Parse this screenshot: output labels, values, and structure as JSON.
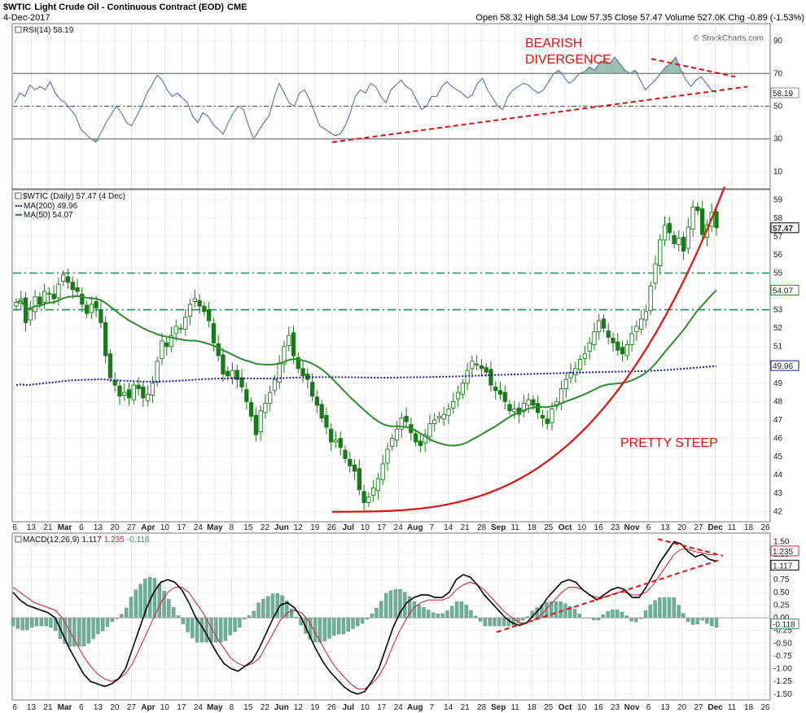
{
  "header": {
    "symbol": "$WTIC",
    "name": "Light Crude Oil - Continuous Contract (EOD)",
    "exchange": "CME",
    "date": "4-Dec-2017",
    "ohlc_text": "Open 58.32  High 58.34  Low 57.35  Close 57.47  Volume 527.0K  Chg -0.89 (-1.53%)",
    "watermark": "© StockCharts.com"
  },
  "colors": {
    "price_up": "#1a7a1a",
    "ma50": "#2e8b2e",
    "ma200": "#1a1a8c",
    "rsi": "#6a78a8",
    "rsi_fill": "#7fae98",
    "macd": "#000000",
    "signal": "#c03040",
    "hist": "#6fae98",
    "annotation": "#e01010",
    "sr": "#1a8c5a"
  },
  "x_axis": {
    "labels": [
      "6",
      "13",
      "21",
      "Mar",
      "6",
      "13",
      "20",
      "27",
      "Apr",
      "10",
      "17",
      "24",
      "May",
      "8",
      "15",
      "22",
      "Jun",
      "12",
      "19",
      "26",
      "Jul",
      "10",
      "17",
      "24",
      "Aug",
      "7",
      "14",
      "21",
      "28",
      "Sep",
      "11",
      "18",
      "25",
      "Oct",
      "10",
      "16",
      "23",
      "Nov",
      "6",
      "13",
      "20",
      "27",
      "Dec",
      "11",
      "18",
      "26"
    ],
    "bold": [
      "Mar",
      "Apr",
      "May",
      "Jun",
      "Jul",
      "Aug",
      "Sep",
      "Oct",
      "Nov",
      "Dec"
    ]
  },
  "chart_data": [
    {
      "type": "line",
      "panel": "rsi",
      "legend": "RSI(14) 58.19",
      "ylim": [
        0,
        100
      ],
      "yticks": [
        "90",
        "70",
        "50",
        "30",
        "10"
      ],
      "current_label": "58.19",
      "levels": [
        "70",
        "50",
        "30"
      ],
      "values": [
        52,
        58,
        56,
        63,
        60,
        62,
        60,
        65,
        58,
        54,
        52,
        48,
        44,
        36,
        33,
        30,
        28,
        34,
        40,
        45,
        50,
        46,
        40,
        38,
        44,
        50,
        58,
        63,
        69,
        66,
        60,
        56,
        58,
        55,
        52,
        44,
        40,
        46,
        44,
        39,
        36,
        33,
        40,
        46,
        50,
        48,
        38,
        30,
        35,
        40,
        44,
        55,
        64,
        58,
        52,
        50,
        58,
        60,
        54,
        46,
        38,
        36,
        34,
        32,
        33,
        38,
        46,
        56,
        60,
        58,
        64,
        62,
        56,
        52,
        60,
        63,
        66,
        62,
        60,
        54,
        48,
        50,
        56,
        56,
        62,
        65,
        62,
        60,
        58,
        55,
        57,
        64,
        67,
        60,
        55,
        50,
        48,
        56,
        60,
        62,
        64,
        63,
        60,
        58,
        60,
        65,
        70,
        72,
        68,
        64,
        66,
        70,
        71,
        74,
        72,
        76,
        78,
        76,
        80,
        76,
        72,
        70,
        72,
        66,
        60,
        63,
        66,
        70,
        74,
        76,
        80,
        72,
        66,
        62,
        66,
        68,
        64,
        60,
        58.19
      ],
      "annotation": {
        "text_lines": [
          "BEARISH",
          "DIVERGENCE"
        ]
      }
    },
    {
      "type": "candlestick",
      "panel": "price",
      "legend": [
        "$WTIC (Daily) 57.47 (4 Dec)",
        "MA(200) 49.96",
        "MA(50) 54.07"
      ],
      "ylim": [
        41.5,
        59.5
      ],
      "yticks": [
        "59",
        "58",
        "57",
        "56",
        "55",
        "54",
        "53",
        "52",
        "51",
        "50",
        "49",
        "48",
        "47",
        "46",
        "45",
        "44",
        "43",
        "42"
      ],
      "price_labels": {
        "last": "57.47",
        "ma50": "54.07",
        "ma200": "49.96"
      },
      "support_resistance": [
        55,
        53
      ],
      "closes": [
        53.4,
        53.6,
        52.3,
        53.0,
        53.7,
        53.3,
        54.0,
        53.9,
        53.6,
        54.4,
        54.9,
        54.5,
        54.1,
        54.0,
        53.3,
        52.8,
        53.3,
        53.1,
        52.3,
        50.5,
        49.3,
        48.9,
        48.3,
        48.5,
        48.2,
        48.9,
        48.7,
        48.2,
        48.4,
        49.0,
        50.2,
        51.3,
        51.0,
        51.6,
        52.1,
        52.0,
        52.6,
        53.3,
        53.6,
        53.2,
        52.9,
        52.4,
        51.2,
        50.5,
        49.5,
        49.4,
        49.7,
        49.2,
        48.8,
        48.0,
        47.2,
        46.2,
        47.5,
        47.9,
        48.5,
        49.2,
        50.1,
        51.0,
        51.6,
        50.5,
        49.8,
        49.4,
        49.2,
        48.3,
        47.8,
        47.1,
        46.6,
        45.8,
        45.9,
        45.5,
        44.9,
        44.5,
        44.2,
        43.2,
        42.5,
        42.8,
        43.3,
        43.8,
        44.6,
        45.4,
        46.0,
        46.5,
        47.1,
        46.9,
        46.3,
        45.8,
        45.6,
        46.2,
        46.8,
        47.0,
        47.2,
        47.3,
        47.6,
        48.0,
        48.5,
        49.0,
        49.7,
        50.2,
        50.0,
        49.8,
        49.6,
        48.9,
        48.6,
        48.4,
        48.0,
        47.5,
        47.6,
        47.3,
        47.9,
        48.1,
        47.8,
        47.4,
        47.1,
        46.8,
        47.6,
        48.0,
        48.7,
        49.2,
        49.6,
        49.8,
        50.3,
        50.6,
        51.2,
        51.8,
        52.4,
        52.0,
        51.5,
        51.2,
        50.8,
        50.6,
        51.1,
        51.7,
        52.1,
        52.5,
        52.9,
        54.3,
        55.5,
        56.8,
        57.6,
        57.2,
        56.6,
        56.9,
        56.2,
        57.5,
        58.6,
        58.4,
        57.1,
        57.6,
        58.3,
        57.47
      ],
      "ma50": [
        54.07
      ],
      "ma200": [
        49.96
      ],
      "annotation": {
        "text": "PRETTY STEEP"
      }
    },
    {
      "type": "line",
      "panel": "macd",
      "legend": {
        "name": "MACD(12,26,9)",
        "values": [
          "1.117",
          "1.235",
          "-0.118"
        ]
      },
      "ylim": [
        -1.6,
        1.65
      ],
      "yticks": [
        "1.50",
        "1.25",
        "1.00",
        "0.75",
        "0.50",
        "0.25",
        "0.00",
        "-0.25",
        "-0.50",
        "-0.75",
        "-1.00",
        "-1.25",
        "-1.50"
      ],
      "current_labels": {
        "signal": "1.235",
        "macd": "1.117",
        "hist": "-0.118"
      },
      "macd": [
        0.5,
        0.35,
        0.25,
        0.2,
        0.15,
        0.1,
        0.0,
        -0.3,
        -0.6,
        -0.85,
        -1.1,
        -1.25,
        -1.3,
        -1.35,
        -1.3,
        -1.2,
        -1.0,
        -0.6,
        -0.2,
        0.2,
        0.5,
        0.7,
        0.75,
        0.7,
        0.55,
        0.3,
        0.0,
        -0.2,
        -0.45,
        -0.7,
        -0.9,
        -1.0,
        -1.05,
        -0.95,
        -0.85,
        -0.6,
        -0.3,
        0.0,
        0.25,
        0.3,
        0.2,
        0.0,
        -0.3,
        -0.6,
        -0.85,
        -1.05,
        -1.2,
        -1.35,
        -1.45,
        -1.5,
        -1.45,
        -1.25,
        -1.0,
        -0.6,
        -0.2,
        0.1,
        0.3,
        0.4,
        0.45,
        0.45,
        0.4,
        0.4,
        0.5,
        0.75,
        0.85,
        0.8,
        0.65,
        0.45,
        0.3,
        0.15,
        0.0,
        -0.1,
        -0.15,
        -0.1,
        0.05,
        0.2,
        0.4,
        0.55,
        0.7,
        0.75,
        0.7,
        0.55,
        0.45,
        0.35,
        0.45,
        0.55,
        0.6,
        0.55,
        0.4,
        0.4,
        0.6,
        0.85,
        1.1,
        1.3,
        1.5,
        1.45,
        1.3,
        1.2,
        1.25,
        1.15,
        1.117
      ],
      "signal": [
        0.6,
        0.5,
        0.4,
        0.3,
        0.25,
        0.2,
        0.15,
        0.0,
        -0.25,
        -0.5,
        -0.75,
        -0.95,
        -1.1,
        -1.2,
        -1.25,
        -1.2,
        -1.1,
        -0.9,
        -0.6,
        -0.3,
        0.0,
        0.3,
        0.5,
        0.6,
        0.6,
        0.5,
        0.3,
        0.1,
        -0.15,
        -0.4,
        -0.6,
        -0.8,
        -0.9,
        -0.95,
        -0.9,
        -0.8,
        -0.55,
        -0.3,
        -0.05,
        0.1,
        0.15,
        0.1,
        -0.05,
        -0.3,
        -0.55,
        -0.8,
        -1.0,
        -1.15,
        -1.3,
        -1.4,
        -1.4,
        -1.3,
        -1.15,
        -0.9,
        -0.55,
        -0.25,
        0.0,
        0.2,
        0.3,
        0.35,
        0.35,
        0.35,
        0.4,
        0.55,
        0.65,
        0.7,
        0.65,
        0.55,
        0.4,
        0.25,
        0.1,
        0.0,
        -0.1,
        -0.1,
        -0.05,
        0.05,
        0.2,
        0.35,
        0.5,
        0.6,
        0.6,
        0.55,
        0.45,
        0.4,
        0.4,
        0.45,
        0.5,
        0.5,
        0.45,
        0.45,
        0.5,
        0.65,
        0.85,
        1.05,
        1.25,
        1.35,
        1.35,
        1.3,
        1.28,
        1.24,
        1.235
      ]
    }
  ]
}
